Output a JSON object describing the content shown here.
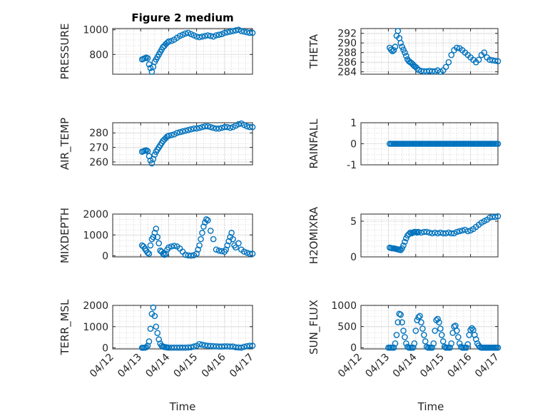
{
  "figure_title": "Figure 2 medium",
  "xlabel": "Time",
  "marker_color": "#0072BD",
  "chart_data": [
    {
      "id": "pressure",
      "type": "scatter",
      "ylabel": "PRESSURE",
      "ylim": [
        640,
        1010
      ],
      "yticks": [
        800,
        1000
      ],
      "yticklabels": [
        "800",
        "1000"
      ],
      "xlim": [
        0,
        5
      ],
      "xticks": [],
      "xticklabels": [],
      "grid": true,
      "minor_grid": true,
      "x": [
        1.05,
        1.1,
        1.15,
        1.2,
        1.25,
        1.3,
        1.35,
        1.4,
        1.45,
        1.5,
        1.55,
        1.6,
        1.65,
        1.7,
        1.75,
        1.8,
        1.85,
        1.9,
        1.95,
        2.0,
        2.1,
        2.2,
        2.3,
        2.4,
        2.5,
        2.6,
        2.7,
        2.8,
        2.9,
        3.0,
        3.1,
        3.2,
        3.3,
        3.4,
        3.5,
        3.6,
        3.7,
        3.8,
        3.9,
        4.0,
        4.1,
        4.2,
        4.3,
        4.4,
        4.5,
        4.6,
        4.7,
        4.8,
        4.9,
        5.0
      ],
      "y": [
        760,
        765,
        770,
        775,
        770,
        720,
        690,
        660,
        700,
        740,
        760,
        780,
        800,
        820,
        840,
        860,
        870,
        885,
        895,
        905,
        910,
        920,
        935,
        950,
        960,
        970,
        975,
        965,
        955,
        945,
        940,
        945,
        950,
        955,
        950,
        945,
        955,
        960,
        965,
        975,
        980,
        985,
        990,
        995,
        1000,
        990,
        985,
        980,
        975,
        975
      ]
    },
    {
      "id": "theta",
      "type": "scatter",
      "ylabel": "THETA",
      "ylim": [
        283.5,
        293
      ],
      "yticks": [
        284,
        286,
        288,
        290,
        292
      ],
      "yticklabels": [
        "284",
        "286",
        "288",
        "290",
        "292"
      ],
      "xlim": [
        0,
        5
      ],
      "xticks": [],
      "xticklabels": [],
      "grid": true,
      "minor_grid": true,
      "x": [
        1.05,
        1.1,
        1.15,
        1.2,
        1.25,
        1.3,
        1.35,
        1.4,
        1.45,
        1.5,
        1.55,
        1.6,
        1.65,
        1.7,
        1.75,
        1.8,
        1.85,
        1.9,
        1.95,
        2.0,
        2.05,
        2.1,
        2.2,
        2.3,
        2.4,
        2.5,
        2.6,
        2.7,
        2.8,
        2.9,
        3.0,
        3.1,
        3.2,
        3.3,
        3.4,
        3.5,
        3.6,
        3.7,
        3.8,
        3.9,
        4.0,
        4.1,
        4.2,
        4.3,
        4.4,
        4.5,
        4.6,
        4.7,
        4.8,
        4.9,
        5.0
      ],
      "y": [
        289,
        288.6,
        288.3,
        288.5,
        289.2,
        291.5,
        292.5,
        291,
        290,
        289.2,
        288.6,
        288,
        287.3,
        286.6,
        286.2,
        286,
        285.8,
        285.5,
        285.2,
        285,
        284.7,
        284.4,
        284.2,
        284.1,
        284.1,
        284.2,
        284.1,
        284.1,
        284.3,
        284,
        284.3,
        285,
        286,
        287.5,
        288.5,
        289,
        288.9,
        288.5,
        288,
        287.5,
        287,
        286.5,
        286,
        286.5,
        287.5,
        288,
        287,
        286.5,
        286.4,
        286.3,
        286.2
      ]
    },
    {
      "id": "air_temp",
      "type": "scatter",
      "ylabel": "AIR_TEMP",
      "ylim": [
        258,
        287
      ],
      "yticks": [
        260,
        270,
        280
      ],
      "yticklabels": [
        "260",
        "270",
        "280"
      ],
      "xlim": [
        0,
        5
      ],
      "xticks": [],
      "xticklabels": [],
      "grid": true,
      "minor_grid": true,
      "x": [
        1.05,
        1.1,
        1.15,
        1.2,
        1.25,
        1.3,
        1.35,
        1.4,
        1.45,
        1.5,
        1.55,
        1.6,
        1.65,
        1.7,
        1.75,
        1.8,
        1.85,
        1.9,
        1.95,
        2.0,
        2.1,
        2.2,
        2.3,
        2.4,
        2.5,
        2.6,
        2.7,
        2.8,
        2.9,
        3.0,
        3.1,
        3.2,
        3.3,
        3.4,
        3.5,
        3.6,
        3.7,
        3.8,
        3.9,
        4.0,
        4.1,
        4.2,
        4.3,
        4.4,
        4.5,
        4.6,
        4.7,
        4.8,
        4.9,
        5.0
      ],
      "y": [
        267,
        267.4,
        267.8,
        268,
        267.5,
        264,
        261,
        259,
        262,
        265,
        267,
        268.5,
        270,
        271.5,
        273,
        274.5,
        275.5,
        276.5,
        277.5,
        278,
        278.5,
        279,
        280,
        280.5,
        281,
        281.5,
        282,
        282.5,
        283,
        283,
        283.5,
        284,
        284.5,
        284.5,
        284,
        283.5,
        283,
        283,
        283.5,
        284,
        284,
        283.5,
        284,
        285,
        286,
        286.5,
        285.5,
        284.5,
        284,
        284
      ]
    },
    {
      "id": "rainfall",
      "type": "scatter",
      "ylabel": "RAINFALL",
      "ylim": [
        -1,
        1
      ],
      "yticks": [
        -1,
        0,
        1
      ],
      "yticklabels": [
        "-1",
        "0",
        "1"
      ],
      "xlim": [
        0,
        5
      ],
      "xticks": [],
      "xticklabels": [],
      "grid": true,
      "minor_grid": true,
      "x": [
        1.05,
        1.1,
        1.15,
        1.2,
        1.25,
        1.3,
        1.35,
        1.4,
        1.45,
        1.5,
        1.55,
        1.6,
        1.65,
        1.7,
        1.75,
        1.8,
        1.85,
        1.9,
        1.95,
        2.0,
        2.05,
        2.1,
        2.15,
        2.2,
        2.25,
        2.3,
        2.35,
        2.4,
        2.45,
        2.5,
        2.55,
        2.6,
        2.65,
        2.7,
        2.75,
        2.8,
        2.85,
        2.9,
        2.95,
        3.0,
        3.05,
        3.1,
        3.15,
        3.2,
        3.25,
        3.3,
        3.35,
        3.4,
        3.45,
        3.5,
        3.55,
        3.6,
        3.65,
        3.7,
        3.75,
        3.8,
        3.85,
        3.9,
        3.95,
        4.0,
        4.05,
        4.1,
        4.15,
        4.2,
        4.25,
        4.3,
        4.35,
        4.4,
        4.45,
        4.5,
        4.55,
        4.6,
        4.65,
        4.7,
        4.75,
        4.8,
        4.85,
        4.9,
        4.95,
        5.0
      ],
      "y": [
        0,
        0,
        0,
        0,
        0,
        0,
        0,
        0,
        0,
        0,
        0,
        0,
        0,
        0,
        0,
        0,
        0,
        0,
        0,
        0,
        0,
        0,
        0,
        0,
        0,
        0,
        0,
        0,
        0,
        0,
        0,
        0,
        0,
        0,
        0,
        0,
        0,
        0,
        0,
        0,
        0,
        0,
        0,
        0,
        0,
        0,
        0,
        0,
        0,
        0,
        0,
        0,
        0,
        0,
        0,
        0,
        0,
        0,
        0,
        0,
        0,
        0,
        0,
        0,
        0,
        0,
        0,
        0,
        0,
        0,
        0,
        0,
        0,
        0,
        0,
        0,
        0,
        0,
        0,
        0
      ]
    },
    {
      "id": "mixdepth",
      "type": "scatter",
      "ylabel": "MIXDEPTH",
      "ylim": [
        -50,
        2000
      ],
      "yticks": [
        0,
        1000,
        2000
      ],
      "yticklabels": [
        "0",
        "1000",
        "2000"
      ],
      "xlim": [
        0,
        5
      ],
      "xticks": [],
      "xticklabels": [],
      "grid": true,
      "minor_grid": true,
      "x": [
        1.05,
        1.1,
        1.15,
        1.2,
        1.25,
        1.3,
        1.35,
        1.4,
        1.45,
        1.5,
        1.55,
        1.6,
        1.65,
        1.7,
        1.75,
        1.8,
        1.85,
        1.9,
        1.95,
        2.0,
        2.1,
        2.2,
        2.3,
        2.4,
        2.5,
        2.6,
        2.7,
        2.8,
        2.9,
        3.0,
        3.05,
        3.1,
        3.15,
        3.2,
        3.25,
        3.3,
        3.35,
        3.4,
        3.5,
        3.6,
        3.7,
        3.8,
        3.9,
        4.0,
        4.05,
        4.1,
        4.15,
        4.2,
        4.25,
        4.3,
        4.35,
        4.4,
        4.5,
        4.6,
        4.7,
        4.8,
        4.9,
        5.0
      ],
      "y": [
        500,
        450,
        350,
        250,
        150,
        100,
        500,
        800,
        900,
        1100,
        1300,
        900,
        600,
        250,
        200,
        100,
        50,
        100,
        300,
        400,
        450,
        480,
        450,
        350,
        200,
        50,
        20,
        10,
        30,
        100,
        300,
        500,
        800,
        1100,
        1400,
        1600,
        1750,
        1700,
        1200,
        800,
        300,
        250,
        220,
        200,
        300,
        500,
        700,
        900,
        1100,
        800,
        500,
        400,
        600,
        300,
        200,
        150,
        100,
        100
      ]
    },
    {
      "id": "h2omixra",
      "type": "scatter",
      "ylabel": "H2OMIXRA",
      "ylim": [
        0,
        6
      ],
      "yticks": [
        0,
        5
      ],
      "yticklabels": [
        "0",
        "5"
      ],
      "xlim": [
        0,
        5
      ],
      "xticks": [],
      "xticklabels": [],
      "grid": true,
      "minor_grid": true,
      "x": [
        1.05,
        1.1,
        1.15,
        1.2,
        1.25,
        1.3,
        1.35,
        1.4,
        1.45,
        1.5,
        1.55,
        1.6,
        1.65,
        1.7,
        1.75,
        1.8,
        1.85,
        1.9,
        1.95,
        2.0,
        2.05,
        2.1,
        2.2,
        2.3,
        2.4,
        2.5,
        2.6,
        2.7,
        2.8,
        2.9,
        3.0,
        3.1,
        3.2,
        3.3,
        3.4,
        3.5,
        3.6,
        3.7,
        3.8,
        3.9,
        4.0,
        4.1,
        4.2,
        4.3,
        4.4,
        4.5,
        4.6,
        4.7,
        4.8,
        4.9,
        5.0
      ],
      "y": [
        1.3,
        1.25,
        1.2,
        1.2,
        1.15,
        1.1,
        1.05,
        1,
        0.95,
        1.2,
        1.6,
        2.1,
        2.6,
        3,
        3.2,
        3.4,
        3.3,
        3.4,
        3.5,
        3.5,
        3.4,
        3.5,
        3.4,
        3.5,
        3.5,
        3.4,
        3.3,
        3.4,
        3.3,
        3.4,
        3.3,
        3.3,
        3.4,
        3.3,
        3.3,
        3.5,
        3.6,
        3.7,
        3.8,
        3.6,
        3.7,
        3.9,
        4.2,
        4.5,
        4.8,
        5,
        5.2,
        5.5,
        5.6,
        5.6,
        5.7
      ]
    },
    {
      "id": "terr_msl",
      "type": "scatter",
      "ylabel": "TERR_MSL",
      "ylim": [
        -50,
        2000
      ],
      "yticks": [
        0,
        1000,
        2000
      ],
      "yticklabels": [
        "0",
        "1000",
        "2000"
      ],
      "xlim": [
        0,
        5
      ],
      "xticks": [
        0,
        1,
        2,
        3,
        4,
        5
      ],
      "xticklabels": [
        "04/12",
        "04/13",
        "04/14",
        "04/15",
        "04/16",
        "04/17"
      ],
      "grid": true,
      "minor_grid": true,
      "x": [
        1.05,
        1.1,
        1.15,
        1.2,
        1.25,
        1.3,
        1.35,
        1.4,
        1.45,
        1.5,
        1.55,
        1.6,
        1.65,
        1.7,
        1.75,
        1.8,
        1.85,
        1.9,
        1.95,
        2.0,
        2.1,
        2.2,
        2.3,
        2.4,
        2.5,
        2.6,
        2.7,
        2.8,
        2.9,
        3.0,
        3.1,
        3.2,
        3.3,
        3.4,
        3.5,
        3.6,
        3.7,
        3.8,
        3.9,
        4.0,
        4.1,
        4.2,
        4.3,
        4.4,
        4.5,
        4.6,
        4.7,
        4.8,
        4.9,
        5.0
      ],
      "y": [
        5,
        5,
        10,
        30,
        100,
        300,
        900,
        1600,
        1900,
        1500,
        1000,
        700,
        400,
        200,
        100,
        60,
        40,
        30,
        20,
        10,
        10,
        10,
        10,
        10,
        10,
        10,
        20,
        30,
        60,
        100,
        180,
        150,
        120,
        100,
        90,
        80,
        70,
        60,
        60,
        70,
        70,
        60,
        60,
        30,
        20,
        10,
        50,
        80,
        100,
        100
      ]
    },
    {
      "id": "sun_flux",
      "type": "scatter",
      "ylabel": "SUN_FLUX",
      "ylim": [
        -30,
        1000
      ],
      "yticks": [
        0,
        500,
        1000
      ],
      "yticklabels": [
        "0",
        "500",
        "1000"
      ],
      "xlim": [
        0,
        5
      ],
      "xticks": [
        0,
        1,
        2,
        3,
        4,
        5
      ],
      "xticklabels": [
        "04/12",
        "04/13",
        "04/14",
        "04/15",
        "04/16",
        "04/17"
      ],
      "grid": true,
      "minor_grid": true,
      "x": [
        1.0,
        1.05,
        1.1,
        1.15,
        1.2,
        1.25,
        1.3,
        1.35,
        1.4,
        1.45,
        1.5,
        1.55,
        1.6,
        1.65,
        1.7,
        1.75,
        1.8,
        1.85,
        1.9,
        1.95,
        2.0,
        2.05,
        2.1,
        2.15,
        2.2,
        2.25,
        2.3,
        2.35,
        2.4,
        2.45,
        2.5,
        2.55,
        2.6,
        2.65,
        2.7,
        2.75,
        2.8,
        2.85,
        2.9,
        2.95,
        3.0,
        3.05,
        3.1,
        3.15,
        3.2,
        3.25,
        3.3,
        3.35,
        3.4,
        3.45,
        3.5,
        3.55,
        3.6,
        3.65,
        3.7,
        3.75,
        3.8,
        3.85,
        3.9,
        3.95,
        4.0,
        4.05,
        4.1,
        4.15,
        4.2,
        4.25,
        4.3,
        4.35,
        4.4,
        4.45,
        4.5,
        4.55,
        4.6,
        4.65,
        4.7,
        4.75,
        4.8,
        4.85,
        4.9,
        4.95,
        5.0
      ],
      "y": [
        0,
        0,
        0,
        0,
        0,
        100,
        300,
        600,
        800,
        780,
        600,
        400,
        250,
        100,
        20,
        0,
        0,
        0,
        0,
        100,
        400,
        650,
        720,
        750,
        600,
        450,
        300,
        150,
        20,
        0,
        0,
        0,
        0,
        100,
        400,
        650,
        680,
        600,
        450,
        300,
        150,
        20,
        0,
        0,
        0,
        0,
        100,
        350,
        500,
        520,
        400,
        250,
        100,
        20,
        0,
        0,
        0,
        0,
        80,
        300,
        420,
        460,
        420,
        300,
        200,
        100,
        50,
        10,
        0,
        0,
        0,
        0,
        0,
        0,
        0,
        0,
        0,
        0,
        0,
        0,
        0
      ]
    }
  ]
}
